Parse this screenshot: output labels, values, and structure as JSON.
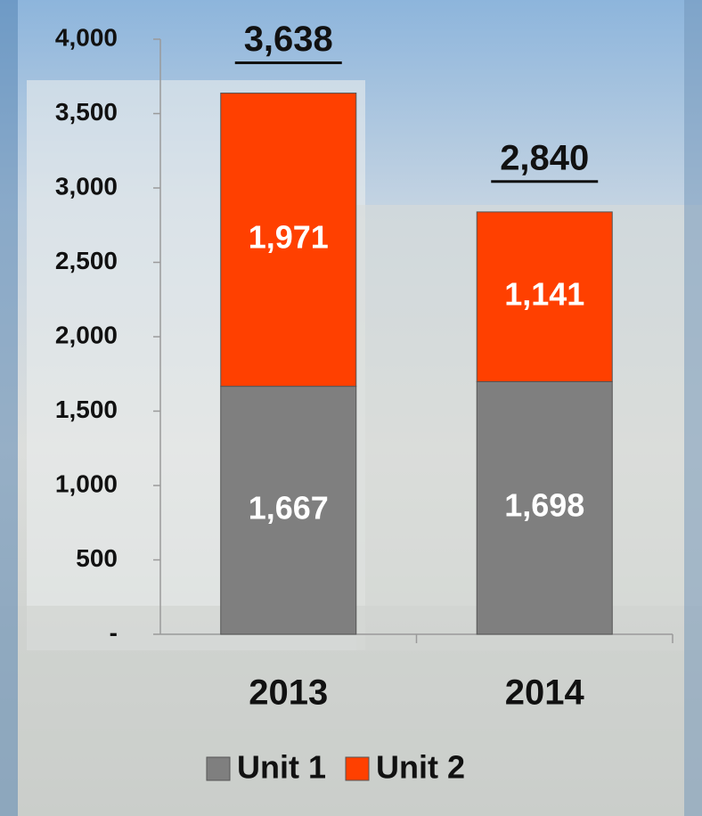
{
  "chart_data": {
    "type": "stacked-bar",
    "categories": [
      "2013",
      "2014"
    ],
    "series": [
      {
        "name": "Unit 1",
        "color": "#7f7f7f",
        "values": [
          1667,
          1698
        ],
        "value_labels": [
          "1,667",
          "1,698"
        ]
      },
      {
        "name": "Unit 2",
        "color": "#ff4000",
        "values": [
          1971,
          1141
        ],
        "value_labels": [
          "1,971",
          "1,141"
        ]
      }
    ],
    "totals": {
      "values": [
        3638,
        2840
      ],
      "value_labels": [
        "3,638",
        "2,840"
      ]
    },
    "ylim": [
      0,
      4000
    ],
    "yticks": [
      {
        "value": 0,
        "label": "-"
      },
      500,
      {
        "value": 1000,
        "label": "1,000"
      },
      {
        "value": 1500,
        "label": "1,500"
      },
      {
        "value": 2000,
        "label": "2,000"
      },
      {
        "value": 2500,
        "label": "2,500"
      },
      {
        "value": 3000,
        "label": "3,000"
      },
      {
        "value": 3500,
        "label": "3,500"
      },
      {
        "value": 4000,
        "label": "4,000"
      }
    ],
    "legend": "bottom"
  }
}
